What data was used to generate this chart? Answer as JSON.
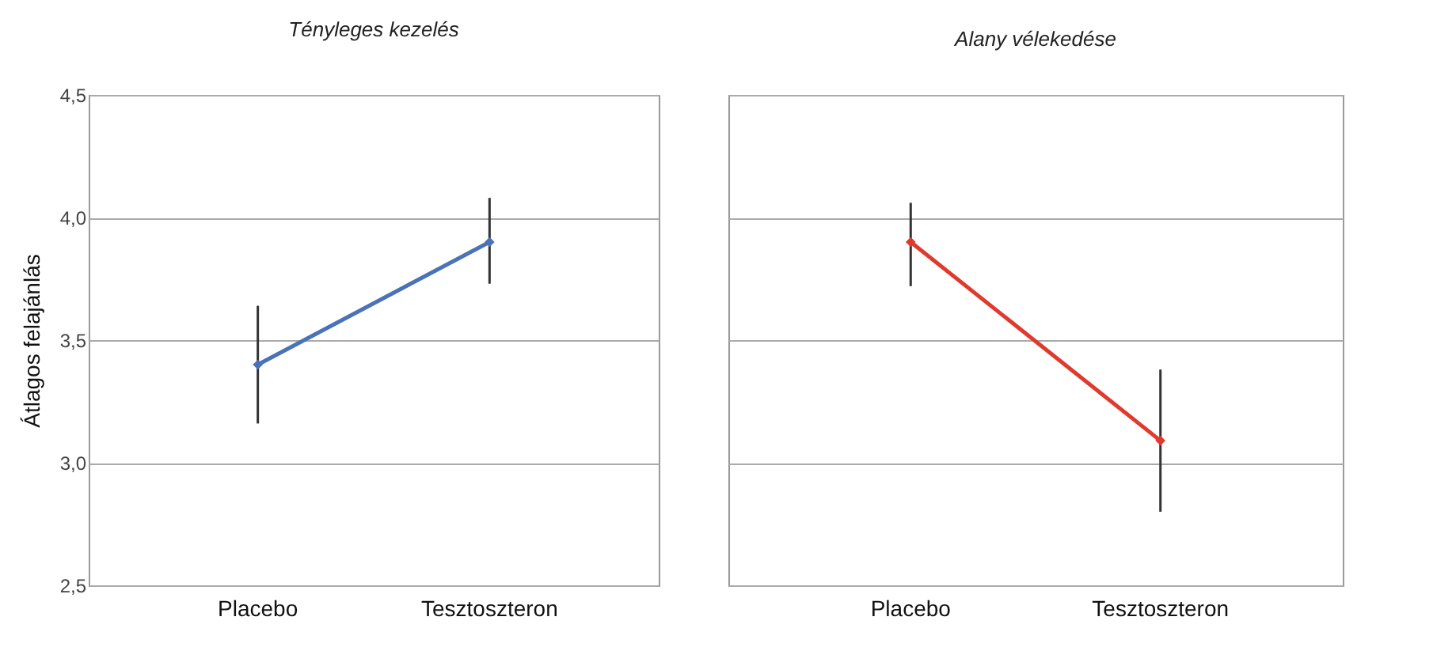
{
  "chart_data": [
    {
      "type": "line",
      "title": "Tényleges kezelés",
      "ylabel": "Átlagos felajánlás",
      "categories": [
        "Placebo",
        "Tesztoszteron"
      ],
      "series": [
        {
          "color": "#4a72b8",
          "values": [
            3.4,
            3.9
          ],
          "errors": [
            [
              3.16,
              3.64
            ],
            [
              3.73,
              4.08
            ]
          ]
        }
      ],
      "ylim": [
        2.5,
        4.5
      ],
      "yticks": [
        {
          "value": 2.5,
          "label": "2,5"
        },
        {
          "value": 3,
          "label": "3,0"
        },
        {
          "value": 3.5,
          "label": "3,5"
        },
        {
          "value": 4,
          "label": "4,0"
        },
        {
          "value": 4.5,
          "label": "4,5"
        }
      ],
      "grid": "y",
      "marker": "diamond",
      "line_style": "solid"
    },
    {
      "type": "line",
      "title": "Alany vélekedése",
      "categories": [
        "Placebo",
        "Tesztoszteron"
      ],
      "series": [
        {
          "color": "#e03a2e",
          "values": [
            3.9,
            3.09
          ],
          "errors": [
            [
              3.72,
              4.06
            ],
            [
              2.8,
              3.38
            ]
          ]
        }
      ],
      "ylim": [
        2.5,
        4.5
      ],
      "yticks": [
        2.5,
        3,
        3.5,
        4,
        4.5
      ],
      "grid": "y",
      "marker": "diamond",
      "line_style": "solid",
      "tick_labels": "x"
    }
  ]
}
